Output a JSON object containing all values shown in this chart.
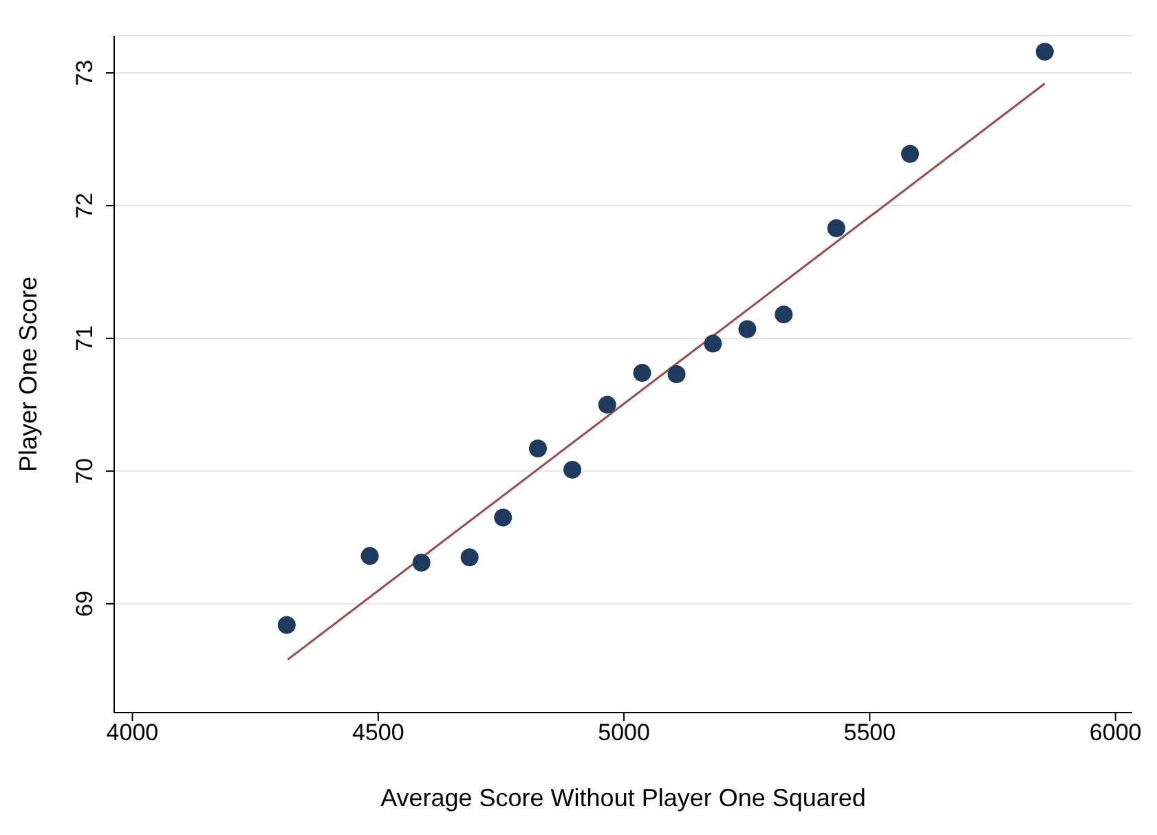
{
  "chart_data": {
    "type": "scatter",
    "xlabel": "Average Score Without Player One Squared",
    "ylabel": "Player One Score",
    "xlim": [
      3963,
      6034
    ],
    "xticks": [
      4000,
      4500,
      5000,
      5500,
      6000
    ],
    "ylim": [
      68.18,
      73.28
    ],
    "yticks": [
      69,
      70,
      71,
      72,
      73
    ],
    "grid": "y",
    "series": [
      {
        "color": "#1f3a5f",
        "marker": "circle",
        "x": [
          4314,
          4483,
          4588,
          4686,
          4754,
          4825,
          4895,
          4966,
          5037,
          5107,
          5181,
          5251,
          5325,
          5432,
          5582,
          5856
        ],
        "values": [
          68.84,
          69.36,
          69.31,
          69.35,
          69.65,
          70.17,
          70.01,
          70.5,
          70.74,
          70.73,
          70.96,
          71.07,
          71.18,
          71.83,
          72.39,
          73.16
        ]
      },
      {
        "type": "line",
        "color": "#9b4b4b",
        "marker": "none",
        "x": [
          4316,
          5856
        ],
        "values": [
          68.58,
          72.92
        ]
      }
    ]
  }
}
